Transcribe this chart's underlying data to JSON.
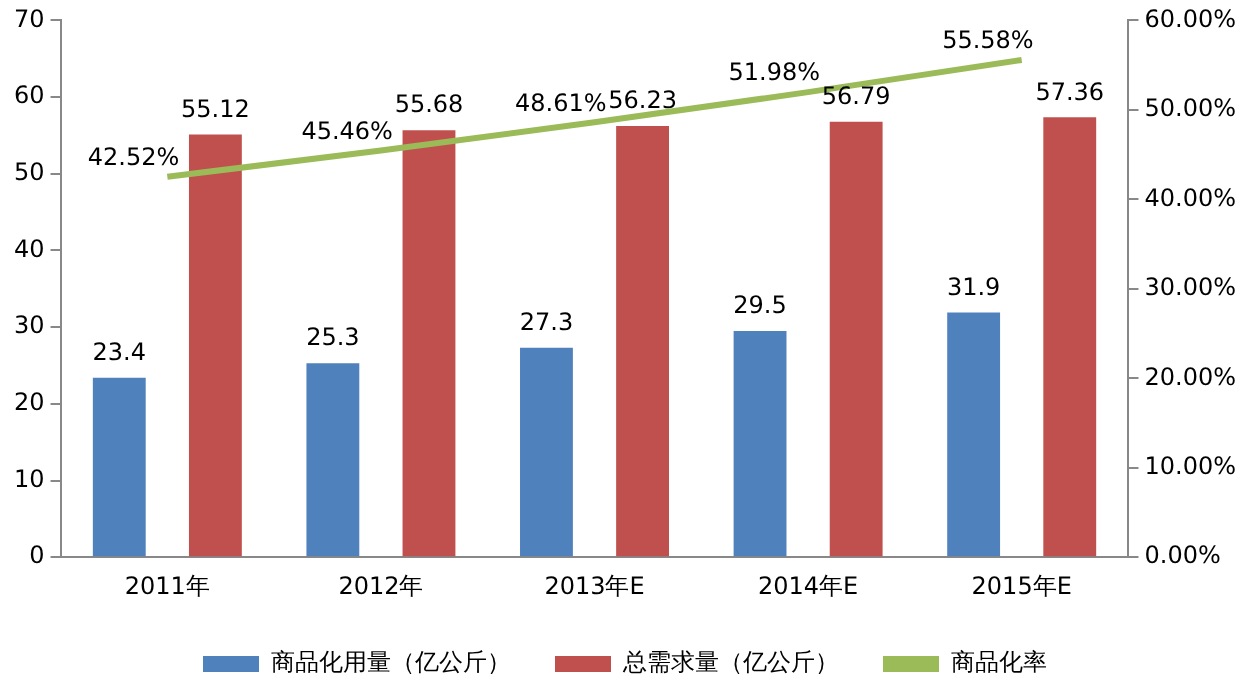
{
  "chart_data": {
    "type": "bar",
    "categories": [
      "2011年",
      "2012年",
      "2013年E",
      "2014年E",
      "2015年E"
    ],
    "series": [
      {
        "name": "商品化用量（亿公斤）",
        "color": "#4f81bd",
        "values": [
          23.4,
          25.3,
          27.3,
          29.5,
          31.9
        ],
        "value_labels": [
          "23.4",
          "25.3",
          "27.3",
          "29.5",
          "31.9"
        ]
      },
      {
        "name": "总需求量（亿公斤）",
        "color": "#c0504d",
        "values": [
          55.12,
          55.68,
          56.23,
          56.79,
          57.36
        ],
        "value_labels": [
          "55.12",
          "55.68",
          "56.23",
          "56.79",
          "57.36"
        ]
      },
      {
        "name": "商品化率",
        "type": "line",
        "axis": "y2",
        "color": "#9bbb59",
        "values": [
          42.52,
          45.46,
          48.61,
          51.98,
          55.58
        ],
        "value_labels": [
          "42.52%",
          "45.46%",
          "48.61%",
          "51.98%",
          "55.58%"
        ]
      }
    ],
    "ylim": [
      0,
      70
    ],
    "yticks": [
      0,
      10,
      20,
      30,
      40,
      50,
      60,
      70
    ],
    "y2lim": [
      0,
      60
    ],
    "y2ticks": [
      {
        "value": 0,
        "label": "0.00%"
      },
      {
        "value": 10,
        "label": "10.00%"
      },
      {
        "value": 20,
        "label": "20.00%"
      },
      {
        "value": 30,
        "label": "30.00%"
      },
      {
        "value": 40,
        "label": "40.00%"
      },
      {
        "value": 50,
        "label": "50.00%"
      },
      {
        "value": 60,
        "label": "60.00%"
      }
    ],
    "legend": "bottom",
    "marker": "none"
  }
}
